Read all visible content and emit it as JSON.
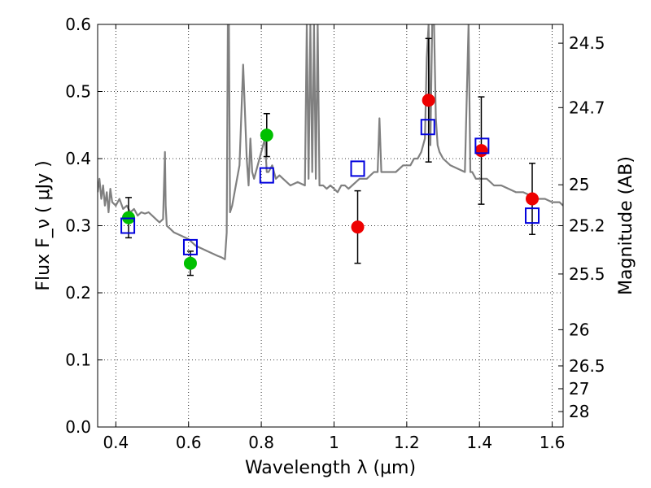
{
  "chart_data": {
    "type": "scatter",
    "xlabel": "Wavelength  λ (μm)",
    "ylabel": "Flux  F_ν ( μJy )",
    "ylabel_right": "Magnitude (AB)",
    "xlim": [
      0.35,
      1.63
    ],
    "ylim": [
      0.0,
      0.6
    ],
    "grid": true,
    "x_ticks": [
      0.4,
      0.6,
      0.8,
      1.0,
      1.2,
      1.4,
      1.6
    ],
    "x_tick_labels": [
      "0.4",
      "0.6",
      "0.8",
      "1",
      "1.2",
      "1.4",
      "1.6"
    ],
    "y_ticks": [
      0.0,
      0.1,
      0.2,
      0.3,
      0.4,
      0.5,
      0.6
    ],
    "y_tick_labels": [
      "0.0",
      "0.1",
      "0.2",
      "0.3",
      "0.4",
      "0.5",
      "0.6"
    ],
    "right_ticks": [
      {
        "label": "24.5",
        "flux": 0.572
      },
      {
        "label": "24.7",
        "flux": 0.476
      },
      {
        "label": "25",
        "flux": 0.361
      },
      {
        "label": "25.2",
        "flux": 0.3
      },
      {
        "label": "25.5",
        "flux": 0.228
      },
      {
        "label": "26",
        "flux": 0.145
      },
      {
        "label": "26.5",
        "flux": 0.091
      },
      {
        "label": "27",
        "flux": 0.057
      },
      {
        "label": "28",
        "flux": 0.023
      }
    ],
    "series": [
      {
        "kind": "line",
        "color": "#808080",
        "x": [
          0.35,
          0.355,
          0.36,
          0.365,
          0.37,
          0.375,
          0.38,
          0.385,
          0.39,
          0.4,
          0.41,
          0.42,
          0.43,
          0.44,
          0.45,
          0.46,
          0.47,
          0.48,
          0.49,
          0.5,
          0.51,
          0.52,
          0.53,
          0.535,
          0.537,
          0.54,
          0.55,
          0.56,
          0.58,
          0.6,
          0.62,
          0.64,
          0.66,
          0.68,
          0.69,
          0.7,
          0.705,
          0.708,
          0.711,
          0.714,
          0.72,
          0.73,
          0.74,
          0.75,
          0.76,
          0.765,
          0.77,
          0.775,
          0.78,
          0.8,
          0.81,
          0.815,
          0.82,
          0.83,
          0.84,
          0.85,
          0.86,
          0.87,
          0.88,
          0.9,
          0.92,
          0.925,
          0.93,
          0.935,
          0.94,
          0.945,
          0.95,
          0.955,
          0.96,
          0.97,
          0.98,
          0.99,
          1.0,
          1.01,
          1.02,
          1.03,
          1.04,
          1.05,
          1.06,
          1.07,
          1.08,
          1.09,
          1.1,
          1.11,
          1.12,
          1.125,
          1.13,
          1.14,
          1.15,
          1.16,
          1.17,
          1.18,
          1.19,
          1.2,
          1.21,
          1.22,
          1.23,
          1.24,
          1.25,
          1.255,
          1.26,
          1.265,
          1.27,
          1.275,
          1.28,
          1.285,
          1.29,
          1.3,
          1.32,
          1.34,
          1.36,
          1.37,
          1.375,
          1.38,
          1.39,
          1.4,
          1.42,
          1.44,
          1.46,
          1.48,
          1.5,
          1.52,
          1.54,
          1.56,
          1.58,
          1.6,
          1.62,
          1.63
        ],
        "y": [
          0.35,
          0.37,
          0.34,
          0.36,
          0.33,
          0.35,
          0.32,
          0.355,
          0.335,
          0.33,
          0.34,
          0.325,
          0.33,
          0.32,
          0.325,
          0.315,
          0.32,
          0.318,
          0.32,
          0.315,
          0.31,
          0.305,
          0.31,
          0.41,
          0.33,
          0.3,
          0.295,
          0.29,
          0.285,
          0.28,
          0.27,
          0.265,
          0.26,
          0.255,
          0.253,
          0.25,
          0.29,
          0.6,
          0.6,
          0.32,
          0.33,
          0.36,
          0.39,
          0.54,
          0.4,
          0.36,
          0.43,
          0.38,
          0.37,
          0.41,
          0.43,
          0.38,
          0.38,
          0.39,
          0.37,
          0.375,
          0.37,
          0.365,
          0.36,
          0.365,
          0.36,
          0.6,
          0.37,
          0.6,
          0.38,
          0.6,
          0.37,
          0.6,
          0.36,
          0.36,
          0.355,
          0.36,
          0.355,
          0.35,
          0.36,
          0.36,
          0.355,
          0.36,
          0.365,
          0.37,
          0.37,
          0.37,
          0.375,
          0.38,
          0.38,
          0.46,
          0.38,
          0.38,
          0.38,
          0.38,
          0.38,
          0.385,
          0.39,
          0.39,
          0.39,
          0.4,
          0.4,
          0.41,
          0.43,
          0.55,
          0.6,
          0.42,
          0.6,
          0.6,
          0.46,
          0.42,
          0.41,
          0.4,
          0.39,
          0.385,
          0.38,
          0.6,
          0.38,
          0.38,
          0.37,
          0.37,
          0.37,
          0.36,
          0.36,
          0.355,
          0.35,
          0.35,
          0.345,
          0.34,
          0.34,
          0.335,
          0.335,
          0.33
        ]
      },
      {
        "kind": "points",
        "name": "",
        "marker": "circle",
        "color": "#00c000",
        "x": [
          0.435,
          0.605,
          0.815
        ],
        "y": [
          0.312,
          0.244,
          0.435
        ],
        "yerr": [
          0.03,
          0.018,
          0.032
        ]
      },
      {
        "kind": "points",
        "name": "",
        "marker": "circle",
        "color": "#ee0000",
        "x": [
          1.065,
          1.26,
          1.405,
          1.545
        ],
        "y": [
          0.298,
          0.487,
          0.412,
          0.34
        ],
        "yerr": [
          0.054,
          0.092,
          0.08,
          0.053
        ]
      },
      {
        "kind": "points",
        "name": "",
        "marker": "square-open",
        "color": "#0000dd",
        "x": [
          0.433,
          0.605,
          0.815,
          1.065,
          1.258,
          1.407,
          1.545
        ],
        "y": [
          0.3,
          0.268,
          0.375,
          0.385,
          0.447,
          0.419,
          0.315
        ]
      }
    ]
  }
}
